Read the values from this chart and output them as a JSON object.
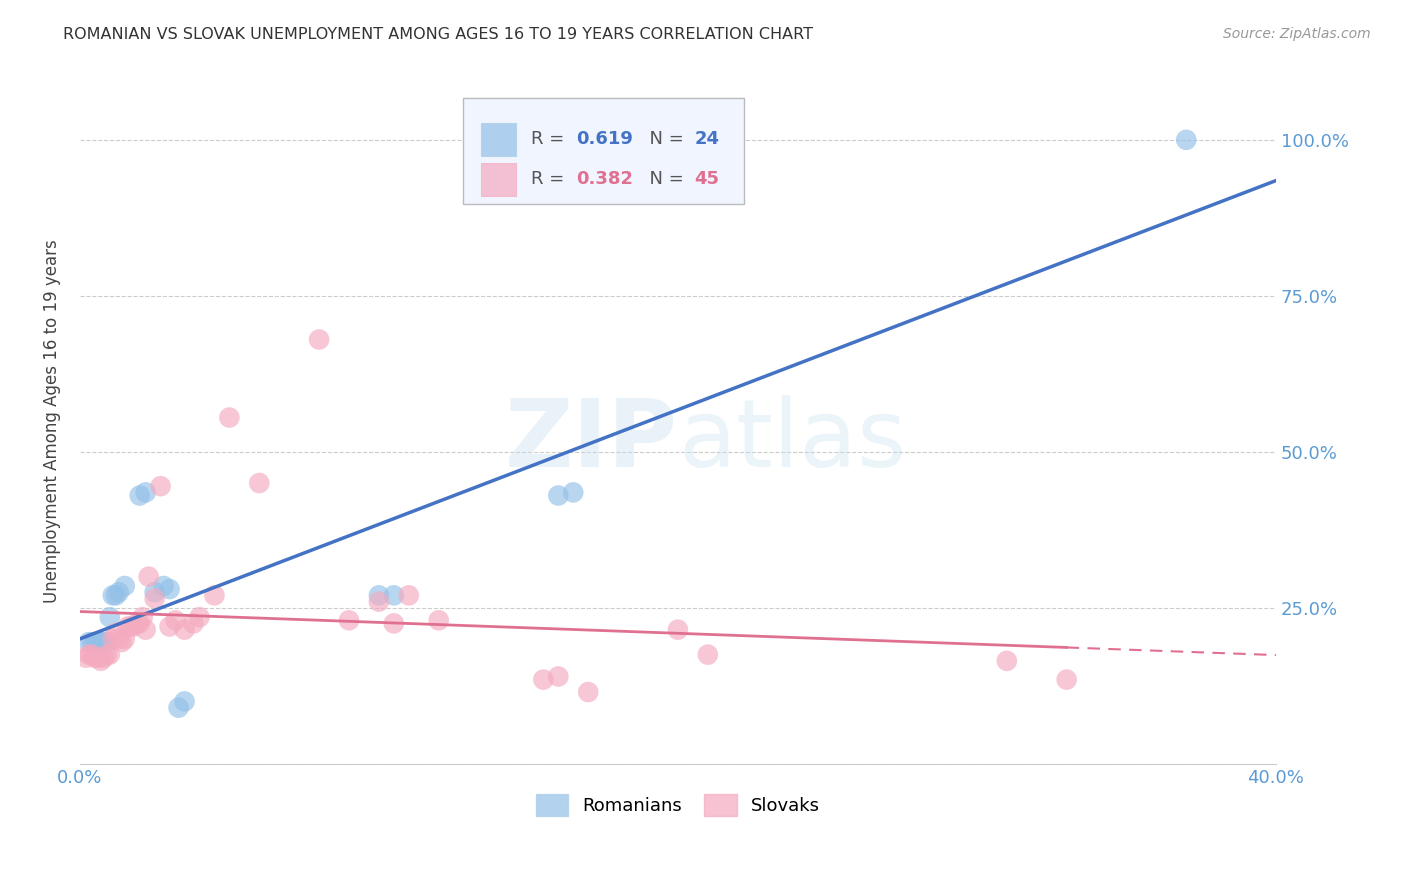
{
  "title": "ROMANIAN VS SLOVAK UNEMPLOYMENT AMONG AGES 16 TO 19 YEARS CORRELATION CHART",
  "source": "Source: ZipAtlas.com",
  "ylabel": "Unemployment Among Ages 16 to 19 years",
  "xlim": [
    0.0,
    0.4
  ],
  "ylim": [
    0.0,
    1.1
  ],
  "romanian_R": 0.619,
  "romanian_N": 24,
  "slovak_R": 0.382,
  "slovak_N": 45,
  "blue_color": "#92C0E8",
  "pink_color": "#F4AABF",
  "blue_line_color": "#4472C4",
  "pink_line_color": "#E07090",
  "bg_color": "#FFFFFF",
  "grid_color": "#CCCCCC",
  "romanian_x": [
    0.003,
    0.004,
    0.005,
    0.006,
    0.007,
    0.008,
    0.009,
    0.01,
    0.011,
    0.012,
    0.013,
    0.015,
    0.02,
    0.022,
    0.025,
    0.028,
    0.03,
    0.033,
    0.035,
    0.1,
    0.105,
    0.16,
    0.165,
    0.37
  ],
  "romanian_y": [
    0.195,
    0.195,
    0.195,
    0.195,
    0.195,
    0.195,
    0.195,
    0.235,
    0.27,
    0.27,
    0.275,
    0.285,
    0.43,
    0.435,
    0.275,
    0.285,
    0.28,
    0.09,
    0.1,
    0.27,
    0.27,
    0.43,
    0.435,
    1.0
  ],
  "slovak_x": [
    0.002,
    0.003,
    0.004,
    0.005,
    0.006,
    0.007,
    0.008,
    0.009,
    0.01,
    0.011,
    0.012,
    0.013,
    0.014,
    0.015,
    0.016,
    0.017,
    0.018,
    0.019,
    0.02,
    0.021,
    0.022,
    0.023,
    0.025,
    0.027,
    0.03,
    0.032,
    0.035,
    0.038,
    0.04,
    0.045,
    0.05,
    0.06,
    0.08,
    0.09,
    0.1,
    0.105,
    0.11,
    0.12,
    0.155,
    0.16,
    0.17,
    0.2,
    0.21,
    0.31,
    0.33
  ],
  "slovak_y": [
    0.17,
    0.175,
    0.175,
    0.17,
    0.17,
    0.165,
    0.17,
    0.175,
    0.175,
    0.2,
    0.21,
    0.2,
    0.195,
    0.2,
    0.22,
    0.22,
    0.22,
    0.225,
    0.225,
    0.235,
    0.215,
    0.3,
    0.265,
    0.445,
    0.22,
    0.23,
    0.215,
    0.225,
    0.235,
    0.27,
    0.555,
    0.45,
    0.68,
    0.23,
    0.26,
    0.225,
    0.27,
    0.23,
    0.135,
    0.14,
    0.115,
    0.215,
    0.175,
    0.165,
    0.135
  ]
}
